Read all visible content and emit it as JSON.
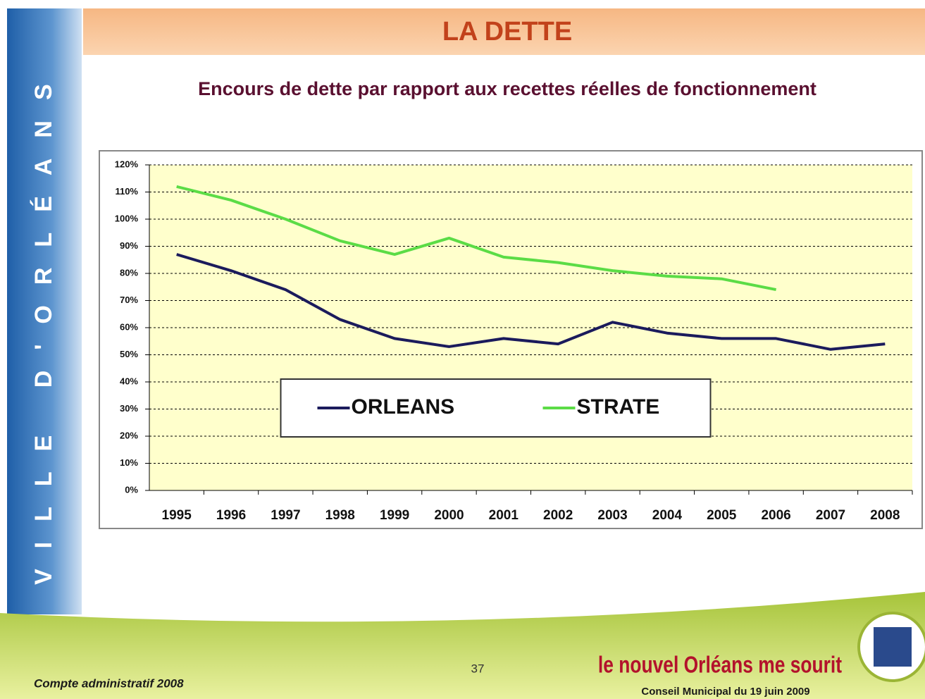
{
  "slide": {
    "sidebar": "VILLE D'ORLÉANS",
    "footer_left": "Compte administratif 2008",
    "page_number": "37",
    "slogan": "le nouvel Orléans me sourit",
    "meeting": "Conseil Municipal du 19 juin 2009"
  },
  "chart_data": {
    "type": "line",
    "title": "LA DETTE",
    "subtitle": "Encours de dette par rapport aux recettes réelles de fonctionnement",
    "categories": [
      "1995",
      "1996",
      "1997",
      "1998",
      "1999",
      "2000",
      "2001",
      "2002",
      "2003",
      "2004",
      "2005",
      "2006",
      "2007",
      "2008"
    ],
    "series": [
      {
        "name": "ORLEANS",
        "color": "#1b1b5c",
        "values": [
          87,
          81,
          74,
          63,
          56,
          53,
          56,
          54,
          62,
          58,
          56,
          56,
          52,
          54
        ]
      },
      {
        "name": "STRATE",
        "color": "#5bdc46",
        "values": [
          112,
          107,
          100,
          92,
          87,
          93,
          86,
          84,
          81,
          79,
          78,
          74,
          null,
          null
        ]
      }
    ],
    "ylim": [
      0,
      120
    ],
    "yticks": [
      {
        "value": 0,
        "label": "0%"
      },
      {
        "value": 10,
        "label": "10%"
      },
      {
        "value": 20,
        "label": "20%"
      },
      {
        "value": 30,
        "label": "30%"
      },
      {
        "value": 40,
        "label": "40%"
      },
      {
        "value": 50,
        "label": "50%"
      },
      {
        "value": 60,
        "label": "60%"
      },
      {
        "value": 70,
        "label": "70%"
      },
      {
        "value": 80,
        "label": "80%"
      },
      {
        "value": 90,
        "label": "90%"
      },
      {
        "value": 100,
        "label": "100%"
      },
      {
        "value": 110,
        "label": "110%"
      },
      {
        "value": 120,
        "label": "120%"
      }
    ],
    "grid": true,
    "legend": "lower center"
  }
}
